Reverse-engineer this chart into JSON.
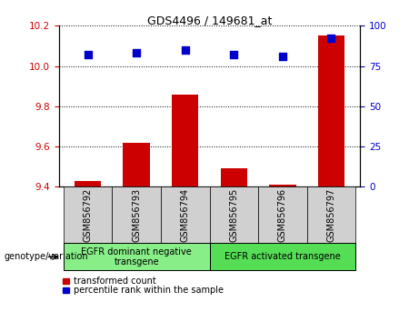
{
  "title": "GDS4496 / 149681_at",
  "samples": [
    "GSM856792",
    "GSM856793",
    "GSM856794",
    "GSM856795",
    "GSM856796",
    "GSM856797"
  ],
  "transformed_counts": [
    9.43,
    9.62,
    9.86,
    9.49,
    9.41,
    10.15
  ],
  "percentile_ranks": [
    82,
    83,
    85,
    82,
    81,
    92
  ],
  "ylim_left": [
    9.4,
    10.2
  ],
  "ylim_right": [
    0,
    100
  ],
  "yticks_left": [
    9.4,
    9.6,
    9.8,
    10.0,
    10.2
  ],
  "yticks_right": [
    0,
    25,
    50,
    75,
    100
  ],
  "bar_color": "#cc0000",
  "dot_color": "#0000cc",
  "group1_label": "EGFR dominant negative\ntransgene",
  "group2_label": "EGFR activated transgene",
  "group1_indices": [
    0,
    1,
    2
  ],
  "group2_indices": [
    3,
    4,
    5
  ],
  "group1_color": "#88ee88",
  "group2_color": "#55dd55",
  "xlabel_main": "genotype/variation",
  "legend_bar": "transformed count",
  "legend_dot": "percentile rank within the sample",
  "bar_width": 0.55,
  "dot_size": 30,
  "tick_color_left": "#cc0000",
  "tick_color_right": "#0000cc",
  "bg_color": "#ffffff",
  "grey_box_color": "#d0d0d0",
  "title_fontsize": 9,
  "tick_fontsize": 7.5,
  "label_fontsize": 7,
  "legend_fontsize": 7
}
